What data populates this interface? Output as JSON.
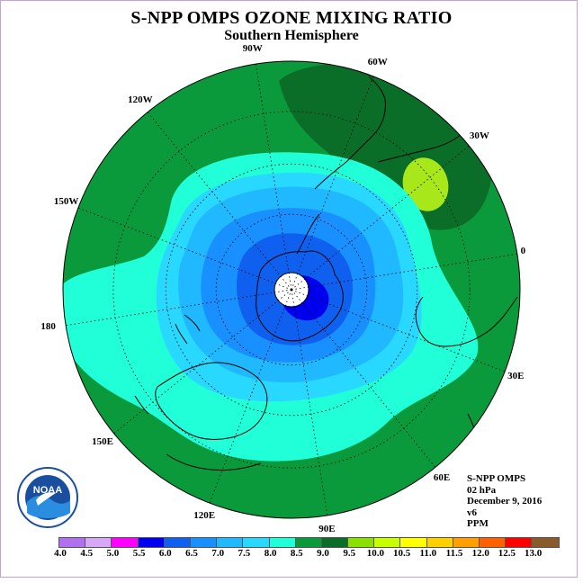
{
  "title": "S-NPP OMPS OZONE MIXING RATIO",
  "subtitle": "Southern Hemisphere",
  "longitude_labels": [
    "90W",
    "60W",
    "30W",
    "0",
    "30E",
    "60E",
    "90E",
    "120E",
    "150E",
    "180",
    "150W",
    "120W"
  ],
  "info": {
    "instrument": "S-NPP OMPS",
    "level": "02 hPa",
    "date": "December 9, 2016",
    "version": "v6",
    "units": "PPM"
  },
  "colorbar": {
    "ticks": [
      "4.0",
      "4.5",
      "5.0",
      "5.5",
      "6.0",
      "6.5",
      "7.0",
      "7.5",
      "8.0",
      "8.5",
      "9.0",
      "9.5",
      "10.0",
      "10.5",
      "11.0",
      "11.5",
      "12.0",
      "12.5",
      "13.0"
    ],
    "colors": [
      "#b070f0",
      "#d8a8f8",
      "#ff00ff",
      "#0000ee",
      "#1060f0",
      "#1890ff",
      "#20b8ff",
      "#28d8ff",
      "#20ffd8",
      "#0a9a3c",
      "#0a6e28",
      "#8ae000",
      "#c8ff00",
      "#ffff00",
      "#ffd000",
      "#ffa000",
      "#ff6000",
      "#ff0000",
      "#8b5a2b"
    ]
  },
  "logo": {
    "text": "NOAA"
  },
  "map": {
    "projection": "polar stereographic, south pole",
    "field_colors": {
      "outer": "#0a9a3c",
      "dark_high": "#0a6e28",
      "peak": "#a8e81a",
      "ring_8": "#20ffd8",
      "ring_75": "#28d8ff",
      "ring_7": "#20b8ff",
      "ring_65": "#1890ff",
      "ring_6": "#1060f0",
      "ring_55": "#0000ee"
    }
  }
}
